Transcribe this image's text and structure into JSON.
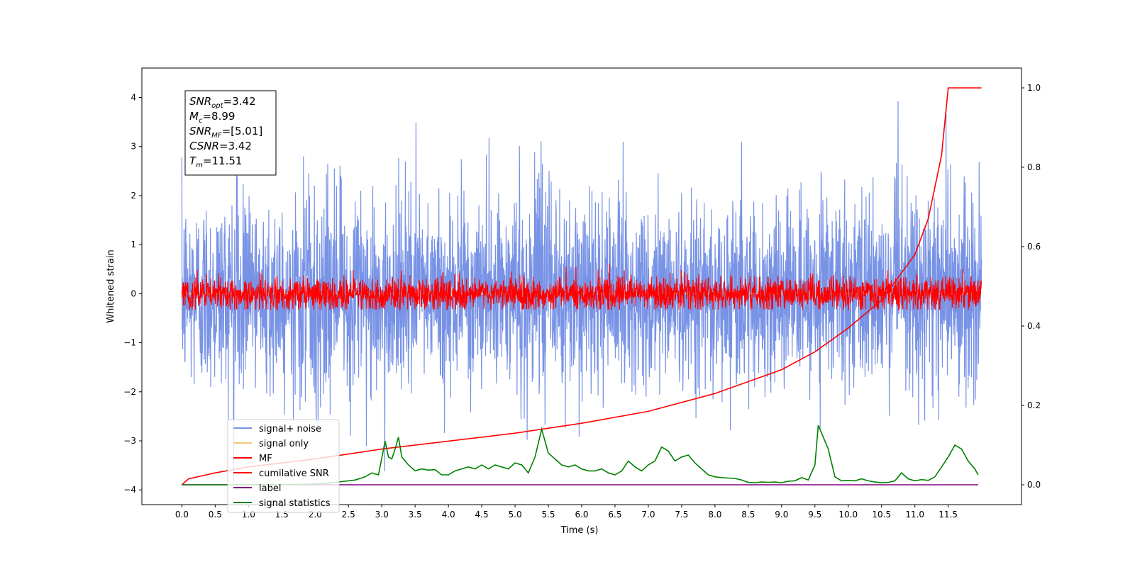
{
  "chart_data": {
    "type": "line",
    "xlabel": "Time (s)",
    "ylabel": "Whitened strain",
    "x_ticks": [
      "0.0",
      "0.5",
      "1.0",
      "1.5",
      "2.0",
      "2.5",
      "3.0",
      "3.5",
      "4.0",
      "4.5",
      "5.0",
      "5.5",
      "6.0",
      "6.5",
      "7.0",
      "7.5",
      "8.0",
      "8.5",
      "9.0",
      "9.5",
      "10.0",
      "10.5",
      "11.0",
      "11.5"
    ],
    "y_ticks": [
      "4",
      "3",
      "2",
      "1",
      "0",
      "−1",
      "−2",
      "−3",
      "−4"
    ],
    "y2_ticks": [
      "1.0",
      "0.8",
      "0.6",
      "0.4",
      "0.2",
      "0.0"
    ],
    "xlim": [
      -0.6,
      12.6
    ],
    "ylim": [
      -4.3,
      4.6
    ],
    "y2lim": [
      -0.05,
      1.05
    ],
    "grid": false,
    "legend_position": "lower-left",
    "annotation": {
      "lines": [
        {
          "base": "SNR",
          "sub": "opt",
          "rest": "=3.42"
        },
        {
          "base": "M",
          "sub": "c",
          "rest": "=8.99"
        },
        {
          "base": "SNR",
          "sub": "MF",
          "rest": "=[5.01]"
        },
        {
          "base": "CSNR",
          "sub": "",
          "rest": "=3.42"
        },
        {
          "base": "T",
          "sub": "m",
          "rest": "=11.51"
        }
      ]
    },
    "series": [
      {
        "name": "signal+ noise",
        "color": "#7893e6",
        "kind": "noise",
        "axis": "left",
        "x_range": [
          0.0,
          12.0
        ],
        "noise_sigma": 1.0,
        "peaks_max": 4.18,
        "peaks_min": -3.95
      },
      {
        "name": "signal only",
        "color": "#f5c87a",
        "kind": "flat",
        "axis": "left",
        "x_range": [
          0.0,
          12.0
        ],
        "value": 0.0
      },
      {
        "name": "MF",
        "color": "#ff0000",
        "kind": "noise",
        "axis": "left",
        "x_range": [
          0.0,
          12.0
        ],
        "noise_sigma": 0.17,
        "peaks_max": 0.78,
        "peaks_min": -0.33
      },
      {
        "name": "cumilative SNR",
        "color": "#ff0000",
        "kind": "curve",
        "axis": "right",
        "x": [
          0.0,
          0.1,
          0.5,
          1.0,
          2.0,
          3.0,
          4.0,
          5.0,
          6.0,
          7.0,
          8.0,
          9.0,
          9.5,
          10.0,
          10.5,
          11.0,
          11.2,
          11.4,
          11.5,
          12.0
        ],
        "y": [
          0.0,
          0.015,
          0.03,
          0.045,
          0.065,
          0.09,
          0.11,
          0.13,
          0.155,
          0.185,
          0.23,
          0.29,
          0.335,
          0.395,
          0.465,
          0.58,
          0.67,
          0.83,
          1.0,
          1.0
        ]
      },
      {
        "name": "label",
        "color": "#800080",
        "kind": "line",
        "axis": "right",
        "x": [
          0.0,
          11.95
        ],
        "y": [
          0.0,
          0.0
        ]
      },
      {
        "name": "signal statistics",
        "color": "#008000",
        "kind": "line",
        "axis": "right",
        "x": [
          0.0,
          0.5,
          1.0,
          1.5,
          2.0,
          2.2,
          2.4,
          2.6,
          2.75,
          2.85,
          2.95,
          3.05,
          3.1,
          3.15,
          3.2,
          3.25,
          3.3,
          3.4,
          3.5,
          3.6,
          3.7,
          3.8,
          3.9,
          4.0,
          4.1,
          4.2,
          4.3,
          4.4,
          4.5,
          4.6,
          4.7,
          4.8,
          4.9,
          5.0,
          5.1,
          5.2,
          5.3,
          5.4,
          5.5,
          5.6,
          5.7,
          5.8,
          5.9,
          6.0,
          6.1,
          6.2,
          6.3,
          6.4,
          6.5,
          6.6,
          6.7,
          6.8,
          6.9,
          7.0,
          7.1,
          7.2,
          7.3,
          7.4,
          7.5,
          7.6,
          7.7,
          7.8,
          7.9,
          8.0,
          8.1,
          8.2,
          8.3,
          8.4,
          8.5,
          8.6,
          8.7,
          8.8,
          8.9,
          9.0,
          9.1,
          9.2,
          9.3,
          9.4,
          9.5,
          9.55,
          9.6,
          9.7,
          9.8,
          9.9,
          10.0,
          10.1,
          10.2,
          10.3,
          10.4,
          10.5,
          10.6,
          10.7,
          10.8,
          10.9,
          11.0,
          11.1,
          11.2,
          11.3,
          11.4,
          11.5,
          11.6,
          11.7,
          11.8,
          11.9,
          11.95
        ],
        "y": [
          0.0,
          0.0,
          0.0,
          0.0,
          0.002,
          0.004,
          0.008,
          0.012,
          0.02,
          0.03,
          0.025,
          0.11,
          0.07,
          0.065,
          0.09,
          0.12,
          0.07,
          0.05,
          0.035,
          0.04,
          0.037,
          0.038,
          0.025,
          0.025,
          0.035,
          0.04,
          0.045,
          0.04,
          0.05,
          0.04,
          0.05,
          0.045,
          0.04,
          0.055,
          0.05,
          0.03,
          0.07,
          0.14,
          0.08,
          0.065,
          0.05,
          0.045,
          0.05,
          0.04,
          0.035,
          0.035,
          0.04,
          0.03,
          0.025,
          0.035,
          0.06,
          0.045,
          0.035,
          0.05,
          0.06,
          0.095,
          0.085,
          0.06,
          0.07,
          0.075,
          0.055,
          0.04,
          0.025,
          0.02,
          0.018,
          0.017,
          0.016,
          0.012,
          0.006,
          0.005,
          0.007,
          0.006,
          0.007,
          0.005,
          0.009,
          0.01,
          0.018,
          0.012,
          0.05,
          0.15,
          0.13,
          0.09,
          0.02,
          0.01,
          0.011,
          0.01,
          0.015,
          0.01,
          0.007,
          0.005,
          0.006,
          0.01,
          0.03,
          0.015,
          0.01,
          0.013,
          0.011,
          0.02,
          0.045,
          0.07,
          0.1,
          0.09,
          0.06,
          0.04,
          0.025
        ]
      }
    ]
  }
}
